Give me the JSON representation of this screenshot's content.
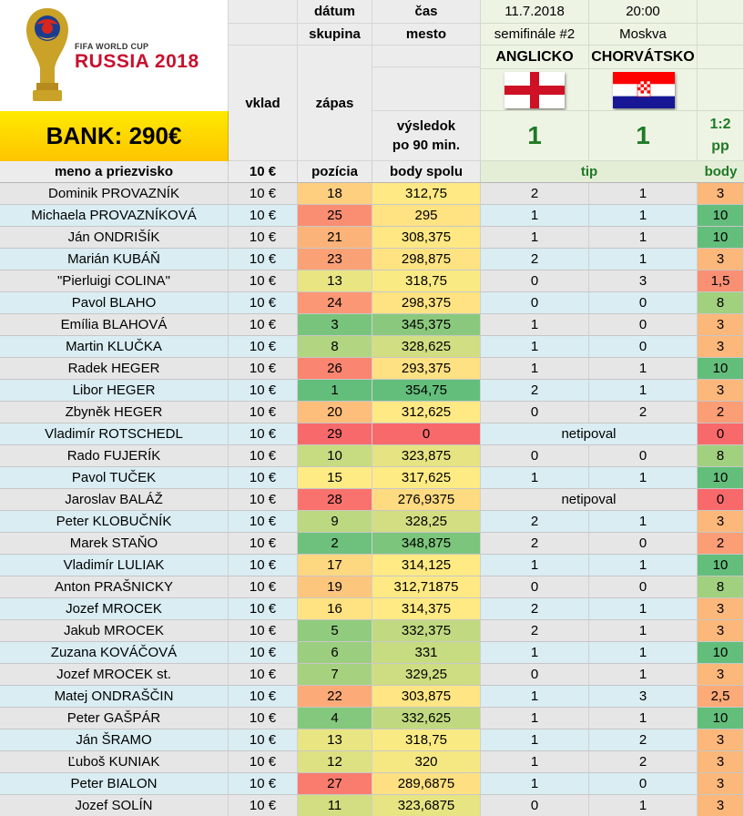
{
  "header": {
    "label_datum": "dátum",
    "label_cas": "čas",
    "label_skupina": "skupina",
    "label_mesto": "mesto",
    "label_vklad": "vklad",
    "label_zapas": "zápas",
    "label_vysledok_1": "výsledok",
    "label_vysledok_2": "po 90 min.",
    "bank": "BANK: 290€"
  },
  "logo": {
    "line1": "FIFA WORLD CUP",
    "line2": "RUSSIA 2018"
  },
  "match": {
    "date": "11.7.2018",
    "time": "20:00",
    "stage": "semifinále #2",
    "city": "Moskva",
    "team_home": "ANGLICKO",
    "team_away": "CHORVÁTSKO",
    "score_home": "1",
    "score_away": "1",
    "ratio": "1:2",
    "ratio_note": "pp"
  },
  "columns": {
    "name": "meno a priezvisko",
    "stake": "10 €",
    "position": "pozícia",
    "points_total": "body spolu",
    "tip": "tip",
    "points": "body"
  },
  "colors": {
    "row_odd": "#e6e6e6",
    "row_even": "#d9edf3",
    "header_gray": "#ececec",
    "bank_yellow": "#ffd400",
    "score_green": "#1e7a26",
    "best_green": "#63be7b",
    "mid_yellow": "#ffeb84",
    "worst_red": "#f8696b"
  },
  "participants": [
    {
      "name": "Dominik PROVAZNÍK",
      "stake": "10 €",
      "position": "18",
      "total": "312,75",
      "tip_home": "2",
      "tip_away": "1",
      "points": "3"
    },
    {
      "name": "Michaela PROVAZNÍKOVÁ",
      "stake": "10 €",
      "position": "25",
      "total": "295",
      "tip_home": "1",
      "tip_away": "1",
      "points": "10"
    },
    {
      "name": "Ján ONDRIŠÍK",
      "stake": "10 €",
      "position": "21",
      "total": "308,375",
      "tip_home": "1",
      "tip_away": "1",
      "points": "10"
    },
    {
      "name": "Marián KUBÁŇ",
      "stake": "10 €",
      "position": "23",
      "total": "298,875",
      "tip_home": "2",
      "tip_away": "1",
      "points": "3"
    },
    {
      "name": "\"Pierluigi COLINA\"",
      "stake": "10 €",
      "position": "13",
      "total": "318,75",
      "tip_home": "0",
      "tip_away": "3",
      "points": "1,5"
    },
    {
      "name": "Pavol BLAHO",
      "stake": "10 €",
      "position": "24",
      "total": "298,375",
      "tip_home": "0",
      "tip_away": "0",
      "points": "8"
    },
    {
      "name": "Emília BLAHOVÁ",
      "stake": "10 €",
      "position": "3",
      "total": "345,375",
      "tip_home": "1",
      "tip_away": "0",
      "points": "3"
    },
    {
      "name": "Martin KLUČKA",
      "stake": "10 €",
      "position": "8",
      "total": "328,625",
      "tip_home": "1",
      "tip_away": "0",
      "points": "3"
    },
    {
      "name": "Radek HEGER",
      "stake": "10 €",
      "position": "26",
      "total": "293,375",
      "tip_home": "1",
      "tip_away": "1",
      "points": "10"
    },
    {
      "name": "Libor HEGER",
      "stake": "10 €",
      "position": "1",
      "total": "354,75",
      "tip_home": "2",
      "tip_away": "1",
      "points": "3"
    },
    {
      "name": "Zbyněk HEGER",
      "stake": "10 €",
      "position": "20",
      "total": "312,625",
      "tip_home": "0",
      "tip_away": "2",
      "points": "2"
    },
    {
      "name": "Vladimír ROTSCHEDL",
      "stake": "10 €",
      "position": "29",
      "total": "0",
      "tip_text": "netipoval",
      "points": "0"
    },
    {
      "name": "Rado FUJERÍK",
      "stake": "10 €",
      "position": "10",
      "total": "323,875",
      "tip_home": "0",
      "tip_away": "0",
      "points": "8"
    },
    {
      "name": "Pavol TUČEK",
      "stake": "10 €",
      "position": "15",
      "total": "317,625",
      "tip_home": "1",
      "tip_away": "1",
      "points": "10"
    },
    {
      "name": "Jaroslav BALÁŽ",
      "stake": "10 €",
      "position": "28",
      "total": "276,9375",
      "tip_text": "netipoval",
      "points": "0"
    },
    {
      "name": "Peter KLOBUČNÍK",
      "stake": "10 €",
      "position": "9",
      "total": "328,25",
      "tip_home": "2",
      "tip_away": "1",
      "points": "3"
    },
    {
      "name": "Marek STAŇO",
      "stake": "10 €",
      "position": "2",
      "total": "348,875",
      "tip_home": "2",
      "tip_away": "0",
      "points": "2"
    },
    {
      "name": "Vladimír LULIAK",
      "stake": "10 €",
      "position": "17",
      "total": "314,125",
      "tip_home": "1",
      "tip_away": "1",
      "points": "10"
    },
    {
      "name": "Anton PRAŠNICKY",
      "stake": "10 €",
      "position": "19",
      "total": "312,71875",
      "tip_home": "0",
      "tip_away": "0",
      "points": "8"
    },
    {
      "name": "Jozef MROCEK",
      "stake": "10 €",
      "position": "16",
      "total": "314,375",
      "tip_home": "2",
      "tip_away": "1",
      "points": "3"
    },
    {
      "name": "Jakub MROCEK",
      "stake": "10 €",
      "position": "5",
      "total": "332,375",
      "tip_home": "2",
      "tip_away": "1",
      "points": "3"
    },
    {
      "name": "Zuzana KOVÁČOVÁ",
      "stake": "10 €",
      "position": "6",
      "total": "331",
      "tip_home": "1",
      "tip_away": "1",
      "points": "10"
    },
    {
      "name": "Jozef MROCEK st.",
      "stake": "10 €",
      "position": "7",
      "total": "329,25",
      "tip_home": "0",
      "tip_away": "1",
      "points": "3"
    },
    {
      "name": "Matej ONDRAŠČIN",
      "stake": "10 €",
      "position": "22",
      "total": "303,875",
      "tip_home": "1",
      "tip_away": "3",
      "points": "2,5"
    },
    {
      "name": "Peter GAŠPÁR",
      "stake": "10 €",
      "position": "4",
      "total": "332,625",
      "tip_home": "1",
      "tip_away": "1",
      "points": "10"
    },
    {
      "name": "Ján ŠRAMO",
      "stake": "10 €",
      "position": "13",
      "total": "318,75",
      "tip_home": "1",
      "tip_away": "2",
      "points": "3"
    },
    {
      "name": "Ľuboš KUNIAK",
      "stake": "10 €",
      "position": "12",
      "total": "320",
      "tip_home": "1",
      "tip_away": "2",
      "points": "3"
    },
    {
      "name": "Peter BIALON",
      "stake": "10 €",
      "position": "27",
      "total": "289,6875",
      "tip_home": "1",
      "tip_away": "0",
      "points": "3"
    },
    {
      "name": "Jozef SOLÍN",
      "stake": "10 €",
      "position": "11",
      "total": "323,6875",
      "tip_home": "0",
      "tip_away": "1",
      "points": "3"
    }
  ]
}
